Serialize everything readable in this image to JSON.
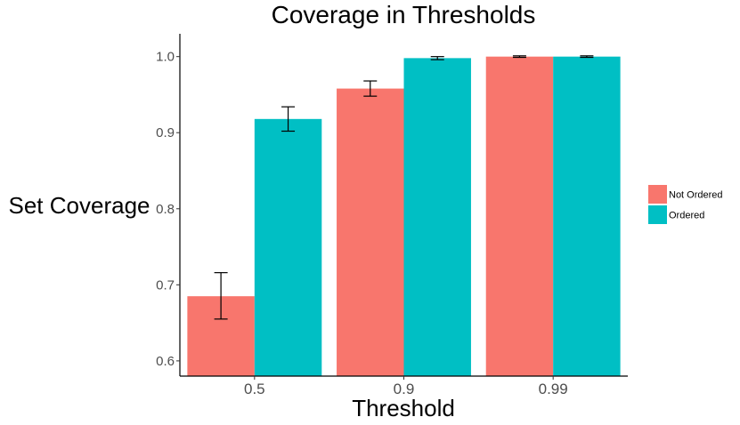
{
  "chart_data": {
    "type": "bar",
    "title": "Coverage in Thresholds",
    "xlabel": "Threshold",
    "ylabel": "Set Coverage",
    "categories": [
      "0.5",
      "0.9",
      "0.99"
    ],
    "series": [
      {
        "name": "Not Ordered",
        "color": "#F8766D",
        "values": [
          0.685,
          0.958,
          1.0
        ],
        "error_low": [
          0.655,
          0.948,
          0.999
        ],
        "error_high": [
          0.716,
          0.968,
          1.001
        ]
      },
      {
        "name": "Ordered",
        "color": "#00BFC4",
        "values": [
          0.918,
          0.998,
          1.0
        ],
        "error_low": [
          0.902,
          0.996,
          0.999
        ],
        "error_high": [
          0.934,
          1.0,
          1.001
        ]
      }
    ],
    "ylim": [
      0.58,
      1.03
    ],
    "yticks": [
      "0.6",
      "0.7",
      "0.8",
      "0.9",
      "1.0"
    ],
    "grid": false,
    "legend_position": "right"
  }
}
